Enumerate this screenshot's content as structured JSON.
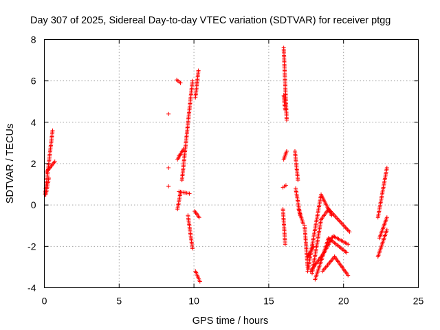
{
  "chart_data": {
    "type": "scatter",
    "title": "Day 307 of 2025, Sidereal Day-to-day VTEC variation (SDTVAR) for receiver ptgg",
    "xlabel": "GPS time / hours",
    "ylabel": "SDTVAR / TECUs",
    "xlim": [
      0,
      25
    ],
    "ylim": [
      -4,
      8
    ],
    "xticks": [
      0,
      5,
      10,
      15,
      20,
      25
    ],
    "yticks": [
      -4,
      -2,
      0,
      2,
      4,
      6,
      8
    ],
    "xtick_labels": [
      "0",
      "5",
      "10",
      "15",
      "20",
      "25"
    ],
    "ytick_labels": [
      "-4",
      "-2",
      "0",
      "2",
      "4",
      "6",
      "8"
    ],
    "grid": true,
    "marker": "+",
    "marker_color": "#ff0000",
    "series": [
      {
        "name": "tracks",
        "kind": "segments",
        "segments": [
          {
            "x": [
              0.05,
              0.55
            ],
            "y": [
              0.5,
              3.6
            ]
          },
          {
            "x": [
              0.15,
              0.7
            ],
            "y": [
              1.6,
              2.1
            ]
          },
          {
            "x": [
              0.1,
              0.3
            ],
            "y": [
              0.5,
              1.3
            ]
          },
          {
            "x": [
              8.9,
              9.3
            ],
            "y": [
              2.2,
              2.7
            ]
          },
          {
            "x": [
              8.85,
              9.1
            ],
            "y": [
              6.05,
              5.9
            ]
          },
          {
            "x": [
              9.2,
              9.9
            ],
            "y": [
              1.2,
              6.0
            ]
          },
          {
            "x": [
              9.0,
              9.7
            ],
            "y": [
              0.65,
              0.55
            ]
          },
          {
            "x": [
              8.9,
              9.1
            ],
            "y": [
              -0.2,
              0.6
            ]
          },
          {
            "x": [
              9.6,
              9.9
            ],
            "y": [
              -0.5,
              -2.1
            ]
          },
          {
            "x": [
              10.05,
              10.35
            ],
            "y": [
              -0.3,
              -0.6
            ]
          },
          {
            "x": [
              10.1,
              10.3
            ],
            "y": [
              5.2,
              6.5
            ]
          },
          {
            "x": [
              10.1,
              10.4
            ],
            "y": [
              -3.2,
              -3.7
            ]
          },
          {
            "x": [
              16.0,
              16.2
            ],
            "y": [
              7.6,
              4.1
            ]
          },
          {
            "x": [
              16.0,
              16.1
            ],
            "y": [
              5.3,
              4.6
            ]
          },
          {
            "x": [
              16.0,
              16.2
            ],
            "y": [
              2.2,
              2.6
            ]
          },
          {
            "x": [
              15.95,
              16.15
            ],
            "y": [
              0.85,
              0.95
            ]
          },
          {
            "x": [
              15.95,
              16.1
            ],
            "y": [
              -0.2,
              -1.9
            ]
          },
          {
            "x": [
              16.75,
              16.95
            ],
            "y": [
              2.6,
              1.2
            ]
          },
          {
            "x": [
              16.8,
              17.1
            ],
            "y": [
              0.8,
              -0.5
            ]
          },
          {
            "x": [
              17.0,
              17.3
            ],
            "y": [
              -0.2,
              -0.9
            ]
          },
          {
            "x": [
              17.4,
              17.6
            ],
            "y": [
              -1.0,
              -3.0
            ]
          },
          {
            "x": [
              17.6,
              18.0
            ],
            "y": [
              -2.5,
              -2.0
            ]
          },
          {
            "x": [
              17.6,
              18.5
            ],
            "y": [
              -3.2,
              0.5
            ]
          },
          {
            "x": [
              18.5,
              19.2
            ],
            "y": [
              0.5,
              -0.5
            ]
          },
          {
            "x": [
              17.9,
              18.5
            ],
            "y": [
              -3.3,
              -0.7
            ]
          },
          {
            "x": [
              18.5,
              19.0
            ],
            "y": [
              -0.7,
              -0.2
            ]
          },
          {
            "x": [
              19.0,
              20.4
            ],
            "y": [
              -0.2,
              -1.3
            ]
          },
          {
            "x": [
              18.1,
              19.0
            ],
            "y": [
              -3.6,
              -1.6
            ]
          },
          {
            "x": [
              19.0,
              20.2
            ],
            "y": [
              -1.6,
              -2.3
            ]
          },
          {
            "x": [
              17.8,
              18.7
            ],
            "y": [
              -3.2,
              -2.3
            ]
          },
          {
            "x": [
              18.7,
              19.3
            ],
            "y": [
              -2.3,
              -1.5
            ]
          },
          {
            "x": [
              19.3,
              20.3
            ],
            "y": [
              -1.5,
              -1.9
            ]
          },
          {
            "x": [
              18.6,
              19.4
            ],
            "y": [
              -3.2,
              -2.5
            ]
          },
          {
            "x": [
              19.4,
              20.3
            ],
            "y": [
              -2.5,
              -3.4
            ]
          },
          {
            "x": [
              22.3,
              22.9
            ],
            "y": [
              -0.6,
              1.8
            ]
          },
          {
            "x": [
              22.3,
              22.9
            ],
            "y": [
              -2.5,
              -1.2
            ]
          },
          {
            "x": [
              22.4,
              22.9
            ],
            "y": [
              -1.6,
              -0.6
            ]
          }
        ]
      },
      {
        "name": "isolated",
        "kind": "points",
        "x": [
          8.3,
          8.3,
          8.3,
          10.2,
          9.0
        ],
        "y": [
          4.4,
          1.8,
          0.9,
          5.9,
          2.4
        ]
      }
    ]
  }
}
